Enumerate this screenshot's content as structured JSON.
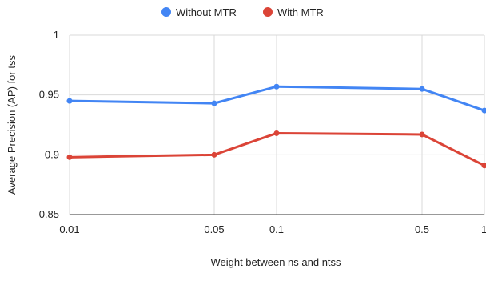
{
  "chart_data": {
    "type": "line",
    "title": "",
    "xlabel": "Weight between ns and ntss",
    "ylabel": "Average Precision (AP) for tss",
    "x": [
      0.01,
      0.05,
      0.1,
      0.5,
      1
    ],
    "x_tick_labels": [
      "0.01",
      "0.05",
      "0.1",
      "0.5",
      "1"
    ],
    "x_scale": "log",
    "ylim": [
      0.85,
      1
    ],
    "y_ticks": [
      0.85,
      0.9,
      0.95,
      1
    ],
    "y_tick_labels": [
      "0.85",
      "0.9",
      "0.95",
      "1"
    ],
    "grid": true,
    "legend_position": "top",
    "series": [
      {
        "name": "Without MTR",
        "color": "#4285f4",
        "values": [
          0.945,
          0.943,
          0.957,
          0.955,
          0.937
        ]
      },
      {
        "name": "With MTR",
        "color": "#db4437",
        "values": [
          0.898,
          0.9,
          0.918,
          0.917,
          0.891
        ]
      }
    ]
  }
}
